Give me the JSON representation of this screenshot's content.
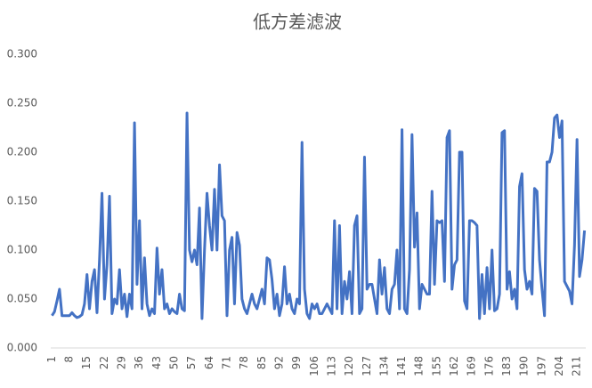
{
  "chart_data": {
    "type": "line",
    "title": "低方差滤波",
    "x": [
      1,
      2,
      3,
      4,
      5,
      6,
      7,
      8,
      9,
      10,
      11,
      12,
      13,
      14,
      15,
      16,
      17,
      18,
      19,
      20,
      21,
      22,
      23,
      24,
      25,
      26,
      27,
      28,
      29,
      30,
      31,
      32,
      33,
      34,
      35,
      36,
      37,
      38,
      39,
      40,
      41,
      42,
      43,
      44,
      45,
      46,
      47,
      48,
      49,
      50,
      51,
      52,
      53,
      54,
      55,
      56,
      57,
      58,
      59,
      60,
      61,
      62,
      63,
      64,
      65,
      66,
      67,
      68,
      69,
      70,
      71,
      72,
      73,
      74,
      75,
      76,
      77,
      78,
      79,
      80,
      81,
      82,
      83,
      84,
      85,
      86,
      87,
      88,
      89,
      90,
      91,
      92,
      93,
      94,
      95,
      96,
      97,
      98,
      99,
      100,
      101,
      102,
      103,
      104,
      105,
      106,
      107,
      108,
      109,
      110,
      111,
      112,
      113,
      114,
      115,
      116,
      117,
      118,
      119,
      120,
      121,
      122,
      123,
      124,
      125,
      126,
      127,
      128,
      129,
      130,
      131,
      132,
      133,
      134,
      135,
      136,
      137,
      138,
      139,
      140,
      141,
      142,
      143,
      144,
      145,
      146,
      147,
      148,
      149,
      150,
      151,
      152,
      153,
      154,
      155,
      156,
      157,
      158,
      159,
      160,
      161,
      162,
      163,
      164,
      165,
      166,
      167,
      168,
      169,
      170,
      171,
      172,
      173,
      174,
      175,
      176,
      177,
      178,
      179,
      180,
      181,
      182,
      183,
      184,
      185,
      186,
      187,
      188,
      189,
      190,
      191,
      192,
      193,
      194,
      195,
      196,
      197,
      198,
      199,
      200,
      201,
      202,
      203,
      204,
      205,
      206,
      207,
      208,
      209,
      210,
      211,
      212,
      213,
      214
    ],
    "series": [
      {
        "color": "#4472c4",
        "values": [
          0.033,
          0.037,
          0.048,
          0.06,
          0.033,
          0.033,
          0.033,
          0.033,
          0.036,
          0.033,
          0.031,
          0.032,
          0.034,
          0.045,
          0.075,
          0.04,
          0.068,
          0.08,
          0.036,
          0.09,
          0.158,
          0.05,
          0.085,
          0.155,
          0.035,
          0.05,
          0.045,
          0.08,
          0.04,
          0.055,
          0.032,
          0.055,
          0.04,
          0.23,
          0.065,
          0.13,
          0.04,
          0.092,
          0.045,
          0.033,
          0.04,
          0.035,
          0.102,
          0.055,
          0.08,
          0.04,
          0.045,
          0.035,
          0.04,
          0.037,
          0.035,
          0.055,
          0.04,
          0.038,
          0.24,
          0.1,
          0.088,
          0.1,
          0.085,
          0.143,
          0.03,
          0.1,
          0.158,
          0.125,
          0.1,
          0.162,
          0.1,
          0.187,
          0.135,
          0.13,
          0.033,
          0.1,
          0.113,
          0.045,
          0.118,
          0.105,
          0.05,
          0.04,
          0.035,
          0.045,
          0.055,
          0.045,
          0.04,
          0.05,
          0.06,
          0.045,
          0.092,
          0.09,
          0.07,
          0.04,
          0.055,
          0.033,
          0.045,
          0.083,
          0.045,
          0.055,
          0.04,
          0.035,
          0.05,
          0.045,
          0.21,
          0.06,
          0.035,
          0.03,
          0.045,
          0.04,
          0.045,
          0.035,
          0.035,
          0.04,
          0.045,
          0.04,
          0.035,
          0.13,
          0.04,
          0.125,
          0.035,
          0.068,
          0.05,
          0.078,
          0.035,
          0.125,
          0.135,
          0.035,
          0.04,
          0.195,
          0.06,
          0.065,
          0.065,
          0.05,
          0.035,
          0.09,
          0.055,
          0.082,
          0.04,
          0.035,
          0.06,
          0.065,
          0.1,
          0.04,
          0.223,
          0.04,
          0.035,
          0.08,
          0.218,
          0.103,
          0.138,
          0.04,
          0.065,
          0.06,
          0.055,
          0.055,
          0.16,
          0.065,
          0.13,
          0.128,
          0.13,
          0.068,
          0.215,
          0.222,
          0.06,
          0.085,
          0.09,
          0.2,
          0.2,
          0.048,
          0.04,
          0.13,
          0.13,
          0.128,
          0.125,
          0.03,
          0.075,
          0.035,
          0.082,
          0.04,
          0.1,
          0.038,
          0.04,
          0.055,
          0.22,
          0.222,
          0.06,
          0.078,
          0.05,
          0.06,
          0.04,
          0.165,
          0.178,
          0.08,
          0.06,
          0.068,
          0.055,
          0.163,
          0.16,
          0.09,
          0.06,
          0.033,
          0.19,
          0.19,
          0.2,
          0.235,
          0.238,
          0.215,
          0.232,
          0.068,
          0.063,
          0.058,
          0.045,
          0.105,
          0.213,
          0.073,
          0.09,
          0.12
        ]
      }
    ],
    "xlim": [
      0.5,
      214.5
    ],
    "xticks": [
      1,
      8,
      15,
      22,
      29,
      36,
      43,
      50,
      57,
      64,
      71,
      78,
      85,
      92,
      99,
      106,
      113,
      120,
      127,
      134,
      141,
      148,
      155,
      162,
      169,
      176,
      183,
      190,
      197,
      204,
      211
    ],
    "ylim": [
      0,
      0.3
    ],
    "yticks": [
      {
        "value": 0,
        "label": "0.000"
      },
      {
        "value": 0.05,
        "label": "0.050"
      },
      {
        "value": 0.1,
        "label": "0.100"
      },
      {
        "value": 0.15,
        "label": "0.150"
      },
      {
        "value": 0.2,
        "label": "0.200"
      },
      {
        "value": 0.25,
        "label": "0.250"
      },
      {
        "value": 0.3,
        "label": "0.300"
      }
    ],
    "grid": false
  }
}
